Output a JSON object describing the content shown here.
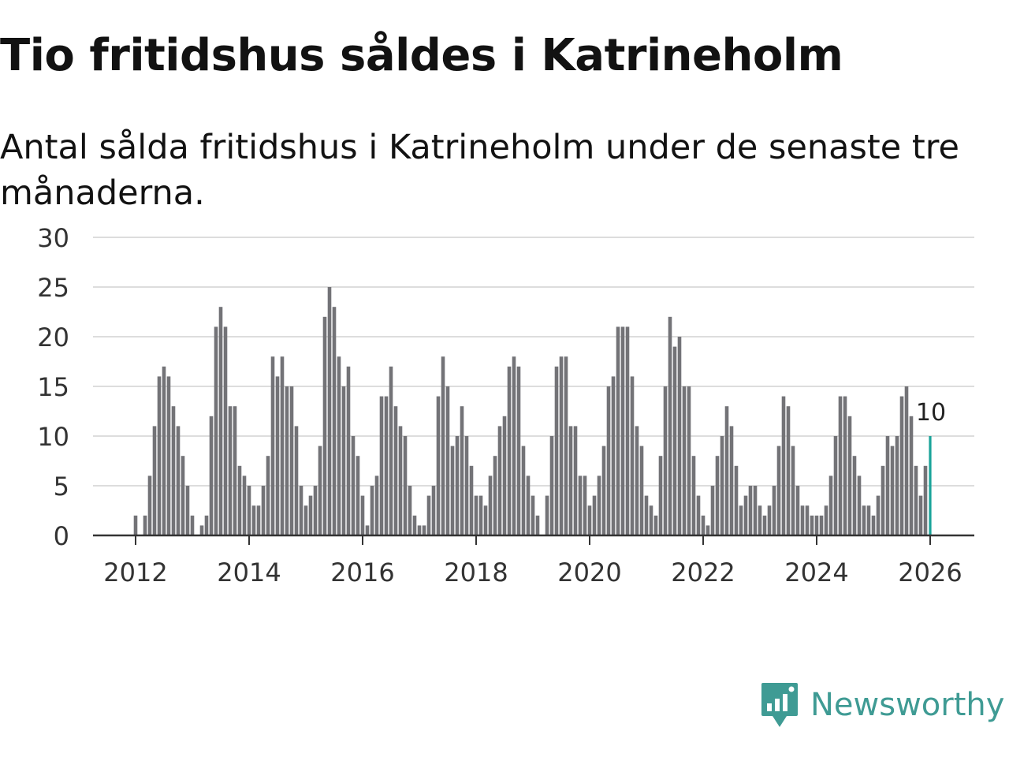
{
  "title": "Tio fritidshus såldes i Katrineholm",
  "subtitle": "Antal sålda fritidshus i Katrineholm under de senaste tre månaderna.",
  "brand": {
    "name": "Newsworthy",
    "color": "#3f9b94",
    "icon": "newsworthy-chart-bubble-icon"
  },
  "colors": {
    "bars": "#737377",
    "highlight": "#1aa39a",
    "grid": "#dddddd",
    "axis": "#333333"
  },
  "chart_data": {
    "type": "bar",
    "x_unit": "month",
    "start_month": "2012-01",
    "ylim": [
      0,
      30
    ],
    "yticks": [
      0,
      5,
      10,
      15,
      20,
      25,
      30
    ],
    "xticks": [
      "2012",
      "2014",
      "2016",
      "2018",
      "2020",
      "2022",
      "2024",
      "2026"
    ],
    "grid": "horizontal",
    "highlight_last": true,
    "last_label": "10",
    "values": [
      2,
      0,
      2,
      6,
      11,
      16,
      17,
      16,
      13,
      11,
      8,
      5,
      2,
      0,
      1,
      2,
      12,
      21,
      23,
      21,
      13,
      13,
      7,
      6,
      5,
      3,
      3,
      5,
      8,
      18,
      16,
      18,
      15,
      15,
      11,
      5,
      3,
      4,
      5,
      9,
      22,
      25,
      23,
      18,
      15,
      17,
      10,
      8,
      4,
      1,
      5,
      6,
      14,
      14,
      17,
      13,
      11,
      10,
      5,
      2,
      1,
      1,
      4,
      5,
      14,
      18,
      15,
      9,
      10,
      13,
      10,
      7,
      4,
      4,
      3,
      6,
      8,
      11,
      12,
      17,
      18,
      17,
      9,
      6,
      4,
      2,
      0,
      4,
      10,
      17,
      18,
      18,
      11,
      11,
      6,
      6,
      3,
      4,
      6,
      9,
      15,
      16,
      21,
      21,
      21,
      16,
      11,
      9,
      4,
      3,
      2,
      8,
      15,
      22,
      19,
      20,
      15,
      15,
      8,
      4,
      2,
      1,
      5,
      8,
      10,
      13,
      11,
      7,
      3,
      4,
      5,
      5,
      3,
      2,
      3,
      5,
      9,
      14,
      13,
      9,
      5,
      3,
      3,
      2,
      2,
      2,
      3,
      6,
      10,
      14,
      14,
      12,
      8,
      6,
      3,
      3,
      2,
      4,
      7,
      10,
      9,
      10,
      14,
      15,
      12,
      7,
      4,
      7,
      10
    ]
  }
}
